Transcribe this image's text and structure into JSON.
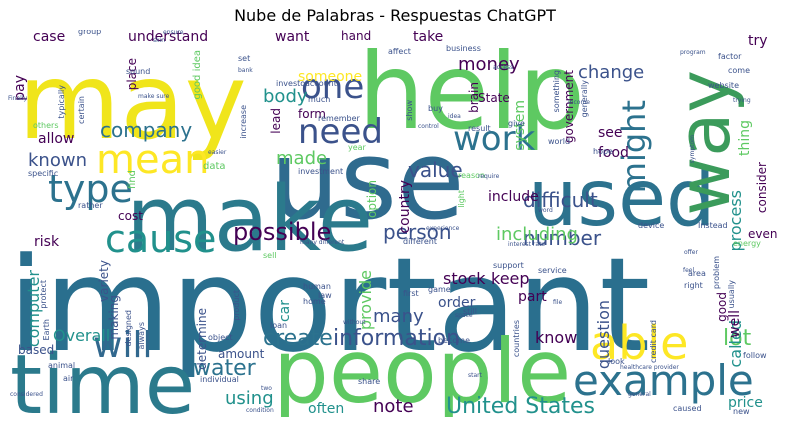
{
  "title": "Nube de Palabras - Respuestas ChatGPT",
  "palette": [
    "#440154",
    "#3b528b",
    "#21918c",
    "#5ec962",
    "#fde725"
  ],
  "words": [
    {
      "text": "important",
      "size": 130,
      "color": "#2a6f8e"
    },
    {
      "text": "use",
      "size": 110,
      "color": "#2f6b8e"
    },
    {
      "text": "may",
      "size": 105,
      "color": "#f0e51b"
    },
    {
      "text": "help",
      "size": 105,
      "color": "#5ec962"
    },
    {
      "text": "make",
      "size": 90,
      "color": "#2b7a8c"
    },
    {
      "text": "people",
      "size": 88,
      "color": "#5ec962"
    },
    {
      "text": "time",
      "size": 82,
      "color": "#2b7a8c"
    },
    {
      "text": "used",
      "size": 78,
      "color": "#2c728e"
    },
    {
      "text": "way",
      "size": 72,
      "color": "#3b9b5b"
    },
    {
      "text": "example",
      "size": 42,
      "color": "#2c728e"
    },
    {
      "text": "able",
      "size": 46,
      "color": "#fde725"
    },
    {
      "text": "cause",
      "size": 38,
      "color": "#21918c"
    },
    {
      "text": "mean",
      "size": 40,
      "color": "#fde725"
    },
    {
      "text": "type",
      "size": 38,
      "color": "#2c728e"
    },
    {
      "text": "will",
      "size": 36,
      "color": "#31688e"
    },
    {
      "text": "need",
      "size": 34,
      "color": "#3b528b"
    },
    {
      "text": "work",
      "size": 34,
      "color": "#2c728e"
    },
    {
      "text": "one",
      "size": 34,
      "color": "#3b528b"
    },
    {
      "text": "might",
      "size": 32,
      "color": "#2c728e"
    },
    {
      "text": "possible",
      "size": 24,
      "color": "#440154"
    },
    {
      "text": "create",
      "size": 22,
      "color": "#2c728e"
    },
    {
      "text": "information",
      "size": 22,
      "color": "#3b528b"
    },
    {
      "text": "United States",
      "size": 22,
      "color": "#21918c"
    },
    {
      "text": "company",
      "size": 20,
      "color": "#2c728e"
    },
    {
      "text": "water",
      "size": 22,
      "color": "#2c728e"
    },
    {
      "text": "lot",
      "size": 22,
      "color": "#5ec962"
    },
    {
      "text": "person",
      "size": 20,
      "color": "#3b528b"
    },
    {
      "text": "difficult",
      "size": 20,
      "color": "#3b528b"
    },
    {
      "text": "value",
      "size": 20,
      "color": "#3b528b"
    },
    {
      "text": "number",
      "size": 20,
      "color": "#3b528b"
    },
    {
      "text": "including",
      "size": 18,
      "color": "#5ec962"
    },
    {
      "text": "known",
      "size": 18,
      "color": "#3b528b"
    },
    {
      "text": "using",
      "size": 18,
      "color": "#21918c"
    },
    {
      "text": "note",
      "size": 18,
      "color": "#440154"
    },
    {
      "text": "money",
      "size": 18,
      "color": "#440154"
    },
    {
      "text": "change",
      "size": 18,
      "color": "#3b528b"
    },
    {
      "text": "body",
      "size": 18,
      "color": "#21918c"
    },
    {
      "text": "made",
      "size": 18,
      "color": "#5ec962"
    },
    {
      "text": "many",
      "size": 18,
      "color": "#3b528b"
    },
    {
      "text": "Overall",
      "size": 16,
      "color": "#21918c"
    },
    {
      "text": "stock",
      "size": 16,
      "color": "#440154"
    },
    {
      "text": "keep",
      "size": 16,
      "color": "#440154"
    },
    {
      "text": "know",
      "size": 16,
      "color": "#440154"
    },
    {
      "text": "question",
      "size": 16,
      "color": "#3b528b"
    },
    {
      "text": "computer",
      "size": 16,
      "color": "#21918c"
    },
    {
      "text": "provide",
      "size": 16,
      "color": "#5ec962"
    },
    {
      "text": "process",
      "size": 16,
      "color": "#21918c"
    },
    {
      "text": "called",
      "size": 16,
      "color": "#21918c"
    },
    {
      "text": "often",
      "size": 14,
      "color": "#21918c"
    },
    {
      "text": "price",
      "size": 14,
      "color": "#21918c"
    },
    {
      "text": "car",
      "size": 14,
      "color": "#21918c"
    },
    {
      "text": "case",
      "size": 14,
      "color": "#440154"
    },
    {
      "text": "understand",
      "size": 14,
      "color": "#440154"
    },
    {
      "text": "want",
      "size": 14,
      "color": "#440154"
    },
    {
      "text": "take",
      "size": 14,
      "color": "#440154"
    },
    {
      "text": "try",
      "size": 14,
      "color": "#440154"
    },
    {
      "text": "pay",
      "size": 14,
      "color": "#440154"
    },
    {
      "text": "allow",
      "size": 14,
      "color": "#440154"
    },
    {
      "text": "system",
      "size": 14,
      "color": "#5ec962"
    },
    {
      "text": "government",
      "size": 12,
      "color": "#440154"
    },
    {
      "text": "country",
      "size": 14,
      "color": "#440154"
    },
    {
      "text": "include",
      "size": 14,
      "color": "#440154"
    },
    {
      "text": "thing",
      "size": 14,
      "color": "#5ec962"
    },
    {
      "text": "see",
      "size": 14,
      "color": "#440154"
    },
    {
      "text": "food",
      "size": 14,
      "color": "#440154"
    },
    {
      "text": "risk",
      "size": 14,
      "color": "#440154"
    },
    {
      "text": "cost",
      "size": 12,
      "color": "#440154"
    },
    {
      "text": "variety",
      "size": 12,
      "color": "#3b528b"
    },
    {
      "text": "making",
      "size": 12,
      "color": "#3b528b"
    },
    {
      "text": "order",
      "size": 14,
      "color": "#3b528b"
    },
    {
      "text": "part",
      "size": 14,
      "color": "#440154"
    },
    {
      "text": "amount",
      "size": 12,
      "color": "#3b528b"
    },
    {
      "text": "based",
      "size": 12,
      "color": "#3b528b"
    },
    {
      "text": "determine",
      "size": 12,
      "color": "#3b528b"
    },
    {
      "text": "even",
      "size": 12,
      "color": "#440154"
    },
    {
      "text": "consider",
      "size": 12,
      "color": "#440154"
    },
    {
      "text": "good",
      "size": 12,
      "color": "#440154"
    },
    {
      "text": "well",
      "size": 14,
      "color": "#440154"
    },
    {
      "text": "someone",
      "size": 14,
      "color": "#fde725"
    },
    {
      "text": "form",
      "size": 12,
      "color": "#440154"
    },
    {
      "text": "lead",
      "size": 12,
      "color": "#440154"
    },
    {
      "text": "place",
      "size": 12,
      "color": "#440154"
    },
    {
      "text": "State",
      "size": 12,
      "color": "#440154"
    },
    {
      "text": "brain",
      "size": 12,
      "color": "#440154"
    },
    {
      "text": "hand",
      "size": 12,
      "color": "#440154"
    },
    {
      "text": "option",
      "size": 12,
      "color": "#5ec962"
    },
    {
      "text": "good idea",
      "size": 10,
      "color": "#5ec962"
    },
    {
      "text": "find",
      "size": 10,
      "color": "#5ec962"
    },
    {
      "text": "data",
      "size": 10,
      "color": "#5ec962"
    },
    {
      "text": "increase",
      "size": 8,
      "color": "#3b528b"
    },
    {
      "text": "investment",
      "size": 8,
      "color": "#3b528b"
    },
    {
      "text": "human",
      "size": 8,
      "color": "#3b528b"
    },
    {
      "text": "law",
      "size": 8,
      "color": "#3b528b"
    },
    {
      "text": "product",
      "size": 8,
      "color": "#3b528b"
    },
    {
      "text": "home",
      "size": 8,
      "color": "#3b528b"
    },
    {
      "text": "loan",
      "size": 8,
      "color": "#3b528b"
    },
    {
      "text": "object",
      "size": 8,
      "color": "#3b528b"
    },
    {
      "text": "individual",
      "size": 8,
      "color": "#3b528b"
    },
    {
      "text": "share",
      "size": 8,
      "color": "#3b528b"
    },
    {
      "text": "look",
      "size": 8,
      "color": "#3b528b"
    },
    {
      "text": "follow",
      "size": 8,
      "color": "#3b528b"
    },
    {
      "text": "animal",
      "size": 8,
      "color": "#3b528b"
    },
    {
      "text": "air",
      "size": 8,
      "color": "#3b528b"
    },
    {
      "text": "always",
      "size": 8,
      "color": "#3b528b"
    },
    {
      "text": "designed",
      "size": 8,
      "color": "#3b528b"
    },
    {
      "text": "protect",
      "size": 8,
      "color": "#3b528b"
    },
    {
      "text": "Earth",
      "size": 8,
      "color": "#3b528b"
    },
    {
      "text": "typically",
      "size": 8,
      "color": "#3b528b"
    },
    {
      "text": "certain",
      "size": 8,
      "color": "#3b528b"
    },
    {
      "text": "specific",
      "size": 8,
      "color": "#3b528b"
    },
    {
      "text": "rather",
      "size": 8,
      "color": "#3b528b"
    },
    {
      "text": "world",
      "size": 8,
      "color": "#3b528b"
    },
    {
      "text": "hope",
      "size": 8,
      "color": "#3b528b"
    },
    {
      "text": "device",
      "size": 8,
      "color": "#3b528b"
    },
    {
      "text": "Instead",
      "size": 8,
      "color": "#3b528b"
    },
    {
      "text": "support",
      "size": 8,
      "color": "#3b528b"
    },
    {
      "text": "service",
      "size": 8,
      "color": "#3b528b"
    },
    {
      "text": "game",
      "size": 8,
      "color": "#3b528b"
    },
    {
      "text": "first",
      "size": 8,
      "color": "#3b528b"
    },
    {
      "text": "still",
      "size": 8,
      "color": "#3b528b"
    },
    {
      "text": "become",
      "size": 8,
      "color": "#3b528b"
    },
    {
      "text": "countries",
      "size": 8,
      "color": "#3b528b"
    },
    {
      "text": "caused",
      "size": 8,
      "color": "#3b528b"
    },
    {
      "text": "new",
      "size": 8,
      "color": "#3b528b"
    },
    {
      "text": "area",
      "size": 8,
      "color": "#3b528b"
    },
    {
      "text": "right",
      "size": 8,
      "color": "#3b528b"
    },
    {
      "text": "problem",
      "size": 8,
      "color": "#3b528b"
    },
    {
      "text": "usually",
      "size": 8,
      "color": "#3b528b"
    },
    {
      "text": "energy",
      "size": 8,
      "color": "#5ec962"
    },
    {
      "text": "website",
      "size": 8,
      "color": "#3b528b"
    },
    {
      "text": "factor",
      "size": 8,
      "color": "#3b528b"
    },
    {
      "text": "come",
      "size": 8,
      "color": "#3b528b"
    },
    {
      "text": "buy",
      "size": 8,
      "color": "#3b528b"
    },
    {
      "text": "result",
      "size": 8,
      "color": "#3b528b"
    },
    {
      "text": "give",
      "size": 8,
      "color": "#3b528b"
    },
    {
      "text": "affect",
      "size": 8,
      "color": "#3b528b"
    },
    {
      "text": "business",
      "size": 8,
      "color": "#3b528b"
    },
    {
      "text": "set",
      "size": 8,
      "color": "#3b528b"
    },
    {
      "text": "investor",
      "size": 8,
      "color": "#3b528b"
    },
    {
      "text": "account",
      "size": 8,
      "color": "#3b528b"
    },
    {
      "text": "much",
      "size": 8,
      "color": "#3b528b"
    },
    {
      "text": "remember",
      "size": 8,
      "color": "#3b528b"
    },
    {
      "text": "sound",
      "size": 8,
      "color": "#3b528b"
    },
    {
      "text": "group",
      "size": 8,
      "color": "#3b528b"
    },
    {
      "text": "show",
      "size": 8,
      "color": "#3b528b"
    },
    {
      "text": "generally",
      "size": 8,
      "color": "#3b528b"
    },
    {
      "text": "something",
      "size": 8,
      "color": "#3b528b"
    },
    {
      "text": "others",
      "size": 8,
      "color": "#5ec962"
    },
    {
      "text": "Finally",
      "size": 6,
      "color": "#3b528b"
    },
    {
      "text": "year",
      "size": 8,
      "color": "#5ec962"
    },
    {
      "text": "light",
      "size": 8,
      "color": "#5ec962"
    },
    {
      "text": "reason",
      "size": 8,
      "color": "#5ec962"
    },
    {
      "text": "sell",
      "size": 8,
      "color": "#5ec962"
    },
    {
      "text": "different",
      "size": 8,
      "color": "#3b528b"
    },
    {
      "text": "credit card",
      "size": 8,
      "color": "#3b528b"
    },
    {
      "text": "many different",
      "size": 6,
      "color": "#3b528b"
    },
    {
      "text": "control",
      "size": 6,
      "color": "#3b528b"
    },
    {
      "text": "idea",
      "size": 6,
      "color": "#3b528b"
    },
    {
      "text": "require",
      "size": 6,
      "color": "#3b528b"
    },
    {
      "text": "experience",
      "size": 6,
      "color": "#3b528b"
    },
    {
      "text": "word",
      "size": 6,
      "color": "#3b528b"
    },
    {
      "text": "file",
      "size": 6,
      "color": "#3b528b"
    },
    {
      "text": "space",
      "size": 6,
      "color": "#3b528b"
    },
    {
      "text": "without",
      "size": 6,
      "color": "#3b528b"
    },
    {
      "text": "access",
      "size": 6,
      "color": "#3b528b"
    },
    {
      "text": "income",
      "size": 6,
      "color": "#3b528b"
    },
    {
      "text": "program",
      "size": 6,
      "color": "#3b528b"
    },
    {
      "text": "trying",
      "size": 6,
      "color": "#3b528b"
    },
    {
      "text": "symptom",
      "size": 6,
      "color": "#3b528b"
    },
    {
      "text": "feel",
      "size": 6,
      "color": "#3b528b"
    },
    {
      "text": "offer",
      "size": 6,
      "color": "#3b528b"
    },
    {
      "text": "general",
      "size": 6,
      "color": "#3b528b"
    },
    {
      "text": "healthcare provider",
      "size": 6,
      "color": "#3b528b"
    },
    {
      "text": "interest rate",
      "size": 6,
      "color": "#3b528b"
    },
    {
      "text": "make sure",
      "size": 6,
      "color": "#3b528b"
    },
    {
      "text": "condition",
      "size": 6,
      "color": "#3b528b"
    },
    {
      "text": "considered",
      "size": 6,
      "color": "#3b528b"
    },
    {
      "text": "two",
      "size": 6,
      "color": "#3b528b"
    },
    {
      "text": "start",
      "size": 6,
      "color": "#3b528b"
    },
    {
      "text": "ensure",
      "size": 6,
      "color": "#3b528b"
    },
    {
      "text": "skin",
      "size": 6,
      "color": "#3b528b"
    },
    {
      "text": "easier",
      "size": 6,
      "color": "#3b528b"
    },
    {
      "text": "bank",
      "size": 6,
      "color": "#3b528b"
    }
  ]
}
